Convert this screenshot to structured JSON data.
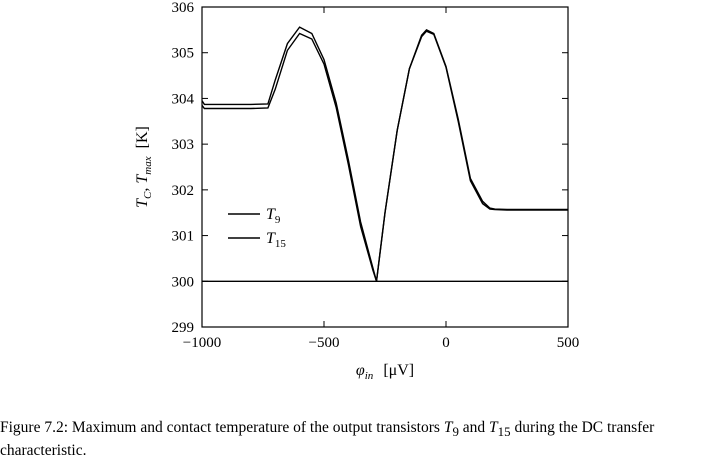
{
  "caption": {
    "number": "Figure 7.2:",
    "part1": " Maximum and contact temperature of the output transistors ",
    "t9_base": "T",
    "t9_sub": "9",
    "and": " and ",
    "t15_base": "T",
    "t15_sub": "15",
    "part2": " during the DC transfer characteristic."
  },
  "chart_data": {
    "type": "line",
    "title": "",
    "xlabel": "φ_in [μV]",
    "ylabel": "T_C, T_max [K]",
    "xlabel_parts": {
      "var": "φ",
      "sub": "in",
      "unit": "[μV]"
    },
    "ylabel_parts": {
      "var1": "T",
      "sub1": "C",
      "sep": ", ",
      "var2": "T",
      "sub2": "max",
      "unit": "[K]"
    },
    "xlim": [
      -1000,
      500
    ],
    "ylim": [
      299,
      306
    ],
    "xticks": [
      -1000,
      -500,
      0,
      500
    ],
    "xtick_labels": [
      "−1000",
      "−500",
      "0",
      "500"
    ],
    "yticks": [
      299,
      300,
      301,
      302,
      303,
      304,
      305,
      306
    ],
    "ytick_labels": [
      "299",
      "300",
      "301",
      "302",
      "303",
      "304",
      "305",
      "306"
    ],
    "grid": false,
    "legend_position": "left",
    "color": "#000000",
    "legend": [
      {
        "base": "T",
        "sub": "9"
      },
      {
        "base": "T",
        "sub": "15"
      }
    ],
    "series": [
      {
        "name": "T9",
        "x": [
          -1000,
          -990,
          -900,
          -800,
          -730,
          -700,
          -650,
          -600,
          -550,
          -500,
          -450,
          -400,
          -350,
          -300,
          -285,
          -250,
          -200,
          -150,
          -100,
          -80,
          -50,
          0,
          50,
          100,
          150,
          180,
          200,
          250,
          300,
          400,
          500
        ],
        "y": [
          303.95,
          303.87,
          303.87,
          303.87,
          303.88,
          304.4,
          305.2,
          305.56,
          305.42,
          304.85,
          303.9,
          302.65,
          301.3,
          300.3,
          300.0,
          301.5,
          303.3,
          304.65,
          305.38,
          305.5,
          305.42,
          304.7,
          303.55,
          302.25,
          301.75,
          301.6,
          301.58,
          301.57,
          301.57,
          301.57,
          301.57
        ]
      },
      {
        "name": "T15",
        "x": [
          -1000,
          -990,
          -900,
          -800,
          -730,
          -700,
          -650,
          -600,
          -550,
          -500,
          -450,
          -400,
          -350,
          -300,
          -285,
          -250,
          -200,
          -150,
          -100,
          -80,
          -50,
          0,
          50,
          100,
          150,
          180,
          200,
          250,
          300,
          400,
          500
        ],
        "y": [
          303.85,
          303.78,
          303.78,
          303.78,
          303.79,
          304.2,
          305.05,
          305.42,
          305.3,
          304.75,
          303.8,
          302.55,
          301.2,
          300.25,
          300.0,
          301.5,
          303.3,
          304.65,
          305.35,
          305.47,
          305.4,
          304.68,
          303.5,
          302.2,
          301.7,
          301.58,
          301.57,
          301.56,
          301.56,
          301.56,
          301.56
        ]
      },
      {
        "name": "T_C",
        "x": [
          -1000,
          -500,
          0,
          500
        ],
        "y": [
          300.0,
          300.0,
          300.0,
          300.0
        ]
      }
    ]
  }
}
